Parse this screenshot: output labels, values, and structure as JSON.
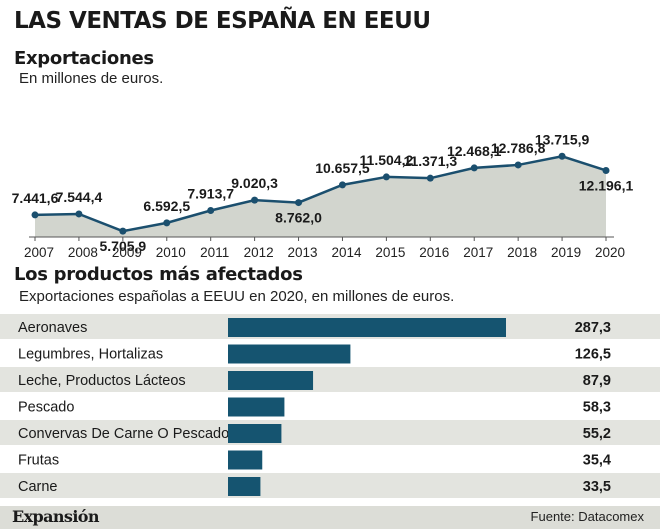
{
  "header": {
    "title": "LAS VENTAS DE ESPAÑA EN EEUU"
  },
  "exports": {
    "title": "Exportaciones",
    "subtitle": "En millones de euros."
  },
  "products": {
    "title": "Los productos más afectados",
    "subtitle": "Exportaciones españolas a EEUU en 2020, en millones de euros."
  },
  "footer": {
    "brand": "Expansión",
    "source": "Fuente: Datacomex"
  },
  "colors": {
    "line": "#1b4f6e",
    "area_fill": "#d2d5ce",
    "bar": "#155470",
    "row_shade": "#e3e4df"
  },
  "chart_data": [
    {
      "type": "area",
      "x": [
        "2007",
        "2008",
        "2009",
        "2010",
        "2011",
        "2012",
        "2013",
        "2014",
        "2015",
        "2016",
        "2017",
        "2018",
        "2019",
        "2020"
      ],
      "values": [
        7441.6,
        7544.4,
        5705.9,
        6592.5,
        7913.7,
        9020.3,
        8762.0,
        10657.5,
        11504.2,
        11371.3,
        12468.1,
        12786.8,
        13715.9,
        12196.1
      ],
      "labels": [
        "7.441,6",
        "7.544,4",
        "5.705,9",
        "6.592,5",
        "7.913,7",
        "9.020,3",
        "8.762,0",
        "10.657,5",
        "11.504,2",
        "11.371,3",
        "12.468,1",
        "12.786,8",
        "13.715,9",
        "12.196,1"
      ],
      "label_position": [
        "above",
        "above",
        "below",
        "above",
        "above",
        "above",
        "below",
        "above",
        "above",
        "above",
        "above",
        "above",
        "above",
        "below"
      ],
      "grid": false
    },
    {
      "type": "bar",
      "orientation": "horizontal",
      "categories": [
        "Aeronaves",
        "Legumbres, Hortalizas",
        "Leche, Productos Lácteos",
        "Pescado",
        "Convervas De Carne O Pescado",
        "Frutas",
        "Carne"
      ],
      "values": [
        287.3,
        126.5,
        87.9,
        58.3,
        55.2,
        35.4,
        33.5
      ],
      "labels": [
        "287,3",
        "126,5",
        "87,9",
        "58,3",
        "55,2",
        "35,4",
        "33,5"
      ]
    }
  ]
}
